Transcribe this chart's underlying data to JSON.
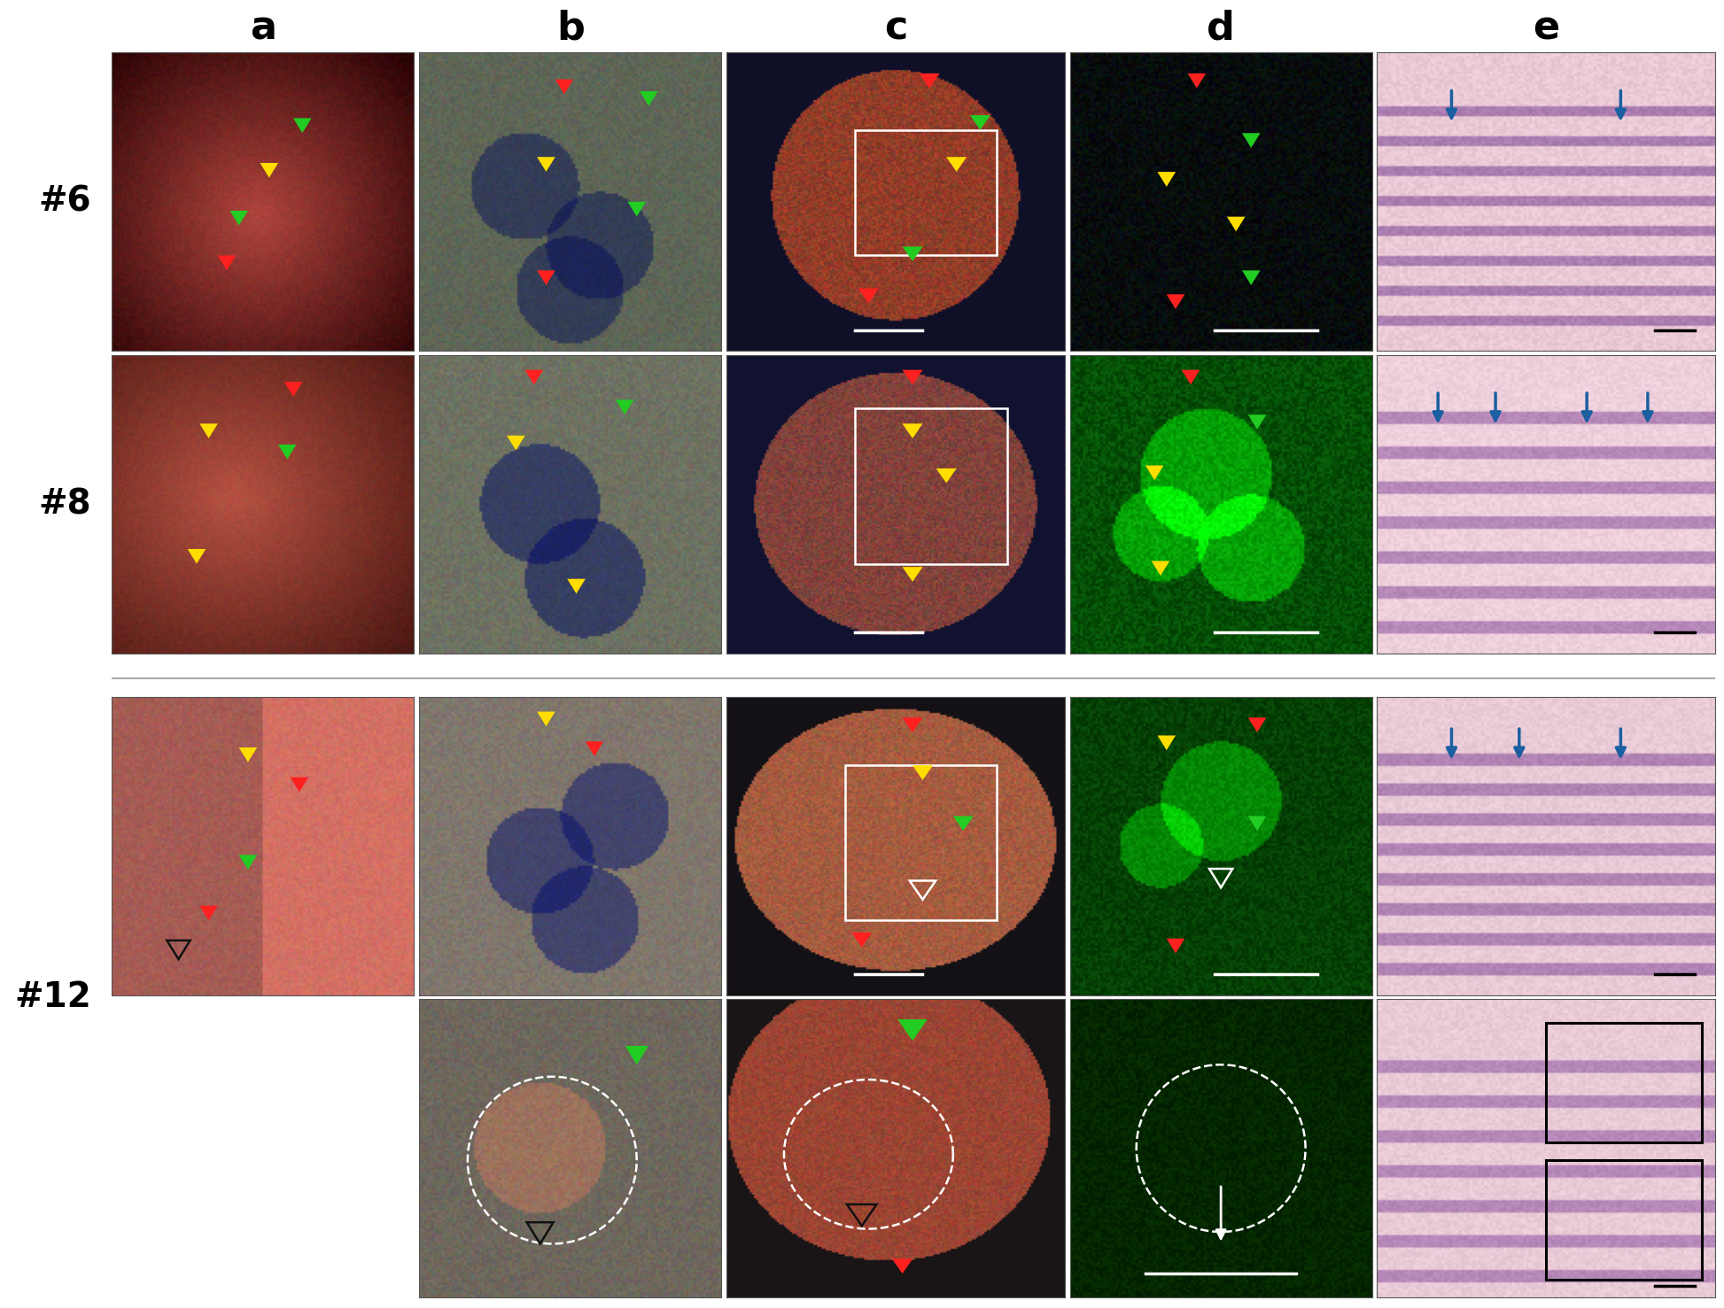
{
  "col_labels": [
    "a",
    "b",
    "c",
    "d",
    "e"
  ],
  "row_labels": [
    "#6",
    "#8",
    "#12"
  ],
  "background_color": "#ffffff",
  "label_fontsize": 32,
  "row_label_fontsize": 28,
  "col_label_color": "#000000",
  "row_label_color": "#000000",
  "fig_width": 19.46,
  "fig_height": 14.77,
  "panel_avg_colors": {
    "r0c0": [
      0.55,
      0.28,
      0.22
    ],
    "r0c1": [
      0.35,
      0.38,
      0.32
    ],
    "r0c2": [
      0.18,
      0.22,
      0.28
    ],
    "r0c3": [
      0.05,
      0.1,
      0.1
    ],
    "r0c4": [
      0.92,
      0.82,
      0.85
    ],
    "r1c0": [
      0.62,
      0.38,
      0.3
    ],
    "r1c1": [
      0.42,
      0.42,
      0.38
    ],
    "r1c2": [
      0.2,
      0.25,
      0.3
    ],
    "r1c3": [
      0.08,
      0.28,
      0.12
    ],
    "r1c4": [
      0.95,
      0.85,
      0.88
    ],
    "r2c0": [
      0.72,
      0.45,
      0.38
    ],
    "r2c1": [
      0.48,
      0.45,
      0.4
    ],
    "r2c2": [
      0.55,
      0.4,
      0.32
    ],
    "r2c3": [
      0.05,
      0.2,
      0.08
    ],
    "r2c4": [
      0.9,
      0.78,
      0.82
    ],
    "r3c1": [
      0.4,
      0.38,
      0.35
    ],
    "r3c2": [
      0.55,
      0.42,
      0.35
    ],
    "r3c3": [
      0.04,
      0.12,
      0.05
    ],
    "r3c4": [
      0.9,
      0.8,
      0.84
    ]
  },
  "arrow_colors": {
    "red": "#FF2020",
    "green": "#22CC22",
    "yellow": "#FFDD00",
    "blue": "#1A5FA0",
    "white": "#FFFFFF",
    "black": "#111111"
  }
}
